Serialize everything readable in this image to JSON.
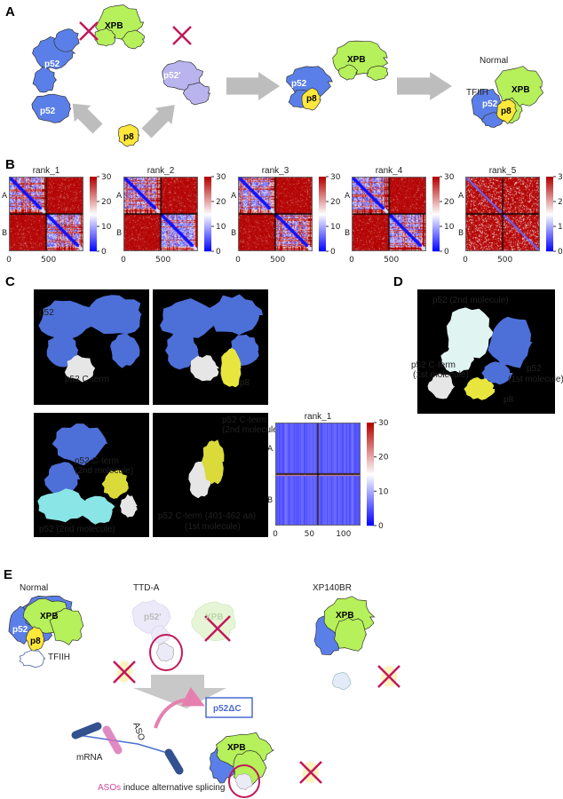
{
  "panels": {
    "a": "A",
    "b": "B",
    "c": "C",
    "d": "D",
    "e": "E"
  },
  "colors": {
    "p52": "#5b7fe8",
    "p52_light": "#b9b3ee",
    "xpb": "#b6f05a",
    "p8": "#ffe83a",
    "cross": "#c2185b",
    "arrow": "#bdbdbd",
    "mrna": "#33508f",
    "aso": "#d86fb3"
  },
  "panel_a": {
    "p52": "p52",
    "p52_prime": "p52'",
    "p8": "p8",
    "xpb": "XPB",
    "normal": "Normal",
    "tfiih": "TFIIH"
  },
  "panel_b": {
    "maps": [
      {
        "title": "rank_1"
      },
      {
        "title": "rank_2"
      },
      {
        "title": "rank_3"
      },
      {
        "title": "rank_4"
      },
      {
        "title": "rank_5"
      }
    ],
    "row_labels": [
      "A",
      "B"
    ],
    "x_ticks": [
      "0",
      "500"
    ],
    "colorbar_ticks": [
      "30",
      "20",
      "10",
      "0"
    ]
  },
  "panel_c": {
    "p52": "p52",
    "p52_cterm": "p52 C-term",
    "p8": "p8",
    "cterm_2nd_a": "p52 C-term",
    "cterm_2nd_b": "(2nd molecule)",
    "p52_2nd": "p52 (2nd molecule)",
    "cterm_1st_a": "p52 C-term (401-462 aa)",
    "cterm_1st_b": "(1st molecule)",
    "heatmap": {
      "title": "rank_1",
      "row_labels": [
        "A",
        "B"
      ],
      "x_ticks": [
        "0",
        "50",
        "100"
      ],
      "colorbar_ticks": [
        "30",
        "20",
        "10",
        "0"
      ]
    }
  },
  "panel_d": {
    "p52_2nd": "p52 (2nd molecule)",
    "cterm_a": "p52 C-term",
    "cterm_b": "(1st molecule)",
    "p52_1st_a": "p52",
    "p52_1st_b": "(1st molecule)",
    "p8": "p8"
  },
  "panel_e": {
    "normal": "Normal",
    "ttda": "TTD-A",
    "xp140br": "XP140BR",
    "xpb": "XPB",
    "p52": "p52",
    "p52_prime": "p52'",
    "p8": "p8",
    "tfiih": "TFIIH",
    "p52dc": "p52ΔC",
    "aso": "ASO",
    "mrna": "mRNA",
    "asos": "ASOs",
    "splicing": " induce alternative splicing"
  }
}
